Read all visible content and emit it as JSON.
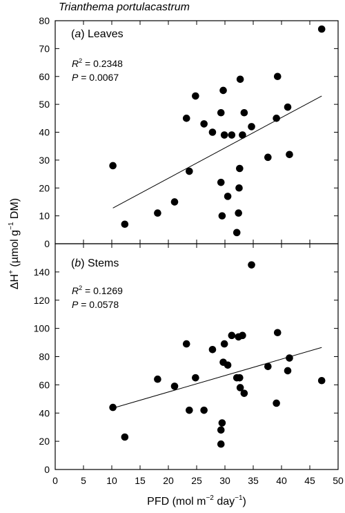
{
  "title": "Trianthema portulacastrum",
  "shared_axes": {
    "xlabel_prefix": "PFD (mol m",
    "xlabel_exp1": "−2",
    "xlabel_mid": " day",
    "xlabel_exp2": "−1",
    "xlabel_suffix": ")",
    "ylabel_prefix": "ΔH",
    "ylabel_sup": "+",
    "ylabel_mid": " (µmol g",
    "ylabel_exp": "−1",
    "ylabel_suffix": " DM)"
  },
  "panels": [
    {
      "paren_open": "(",
      "letter": "a",
      "paren_close": ")",
      "name": " Leaves",
      "r2_symbol": "R",
      "r2_exp": "2",
      "r2_text": " = 0.2348",
      "p_symbol": "P",
      "p_text": " = 0.0067"
    },
    {
      "paren_open": "(",
      "letter": "b",
      "paren_close": ")",
      "name": " Stems",
      "r2_symbol": "R",
      "r2_exp": "2",
      "r2_text": " = 0.1269",
      "p_symbol": "P",
      "p_text": " = 0.0578"
    }
  ],
  "chart_data": [
    {
      "type": "scatter",
      "title": "Leaves",
      "xlim": [
        0,
        50
      ],
      "ylim": [
        0,
        80
      ],
      "xticks": [
        0,
        5,
        10,
        15,
        20,
        25,
        30,
        35,
        40,
        45,
        50
      ],
      "yticks": [
        0,
        10,
        20,
        30,
        40,
        50,
        60,
        70,
        80
      ],
      "points": [
        [
          10.2,
          28
        ],
        [
          12.3,
          7
        ],
        [
          18.1,
          11
        ],
        [
          21.1,
          15
        ],
        [
          23.2,
          45
        ],
        [
          23.7,
          26
        ],
        [
          24.8,
          53
        ],
        [
          26.3,
          43
        ],
        [
          27.8,
          40
        ],
        [
          29.3,
          47
        ],
        [
          29.3,
          22
        ],
        [
          29.5,
          10
        ],
        [
          29.7,
          55
        ],
        [
          29.9,
          39
        ],
        [
          30.5,
          17
        ],
        [
          31.2,
          39
        ],
        [
          32.1,
          4
        ],
        [
          32.4,
          11
        ],
        [
          32.5,
          20
        ],
        [
          32.6,
          27
        ],
        [
          32.7,
          59
        ],
        [
          33.1,
          39
        ],
        [
          33.4,
          47
        ],
        [
          34.7,
          42
        ],
        [
          37.6,
          31
        ],
        [
          39.1,
          45
        ],
        [
          39.3,
          60
        ],
        [
          41.1,
          49
        ],
        [
          41.4,
          32
        ],
        [
          47.1,
          77
        ]
      ],
      "regression": {
        "x": [
          10.2,
          47.1
        ],
        "y": [
          12.8,
          53
        ]
      },
      "grid": false
    },
    {
      "type": "scatter",
      "title": "Stems",
      "xlim": [
        0,
        50
      ],
      "ylim": [
        0,
        160
      ],
      "xticks": [
        0,
        5,
        10,
        15,
        20,
        25,
        30,
        35,
        40,
        45,
        50
      ],
      "yticks": [
        0,
        20,
        40,
        60,
        80,
        100,
        120,
        140
      ],
      "xlabel": "PFD (mol m−2 day−1)",
      "points": [
        [
          10.2,
          44
        ],
        [
          12.3,
          23
        ],
        [
          18.1,
          64
        ],
        [
          21.1,
          59
        ],
        [
          23.2,
          89
        ],
        [
          23.7,
          42
        ],
        [
          24.8,
          65
        ],
        [
          26.3,
          42
        ],
        [
          27.8,
          85
        ],
        [
          29.3,
          18
        ],
        [
          29.3,
          28
        ],
        [
          29.5,
          33
        ],
        [
          29.7,
          76
        ],
        [
          29.9,
          89
        ],
        [
          30.5,
          74
        ],
        [
          31.2,
          95
        ],
        [
          32.1,
          65
        ],
        [
          32.4,
          94
        ],
        [
          32.6,
          65
        ],
        [
          32.7,
          58
        ],
        [
          33.1,
          95
        ],
        [
          33.4,
          54
        ],
        [
          34.7,
          145
        ],
        [
          37.6,
          73
        ],
        [
          39.1,
          47
        ],
        [
          39.3,
          97
        ],
        [
          41.1,
          70
        ],
        [
          41.4,
          79
        ],
        [
          47.1,
          63
        ]
      ],
      "regression": {
        "x": [
          10.2,
          47.1
        ],
        "y": [
          43.5,
          86.5
        ]
      },
      "grid": false
    }
  ]
}
